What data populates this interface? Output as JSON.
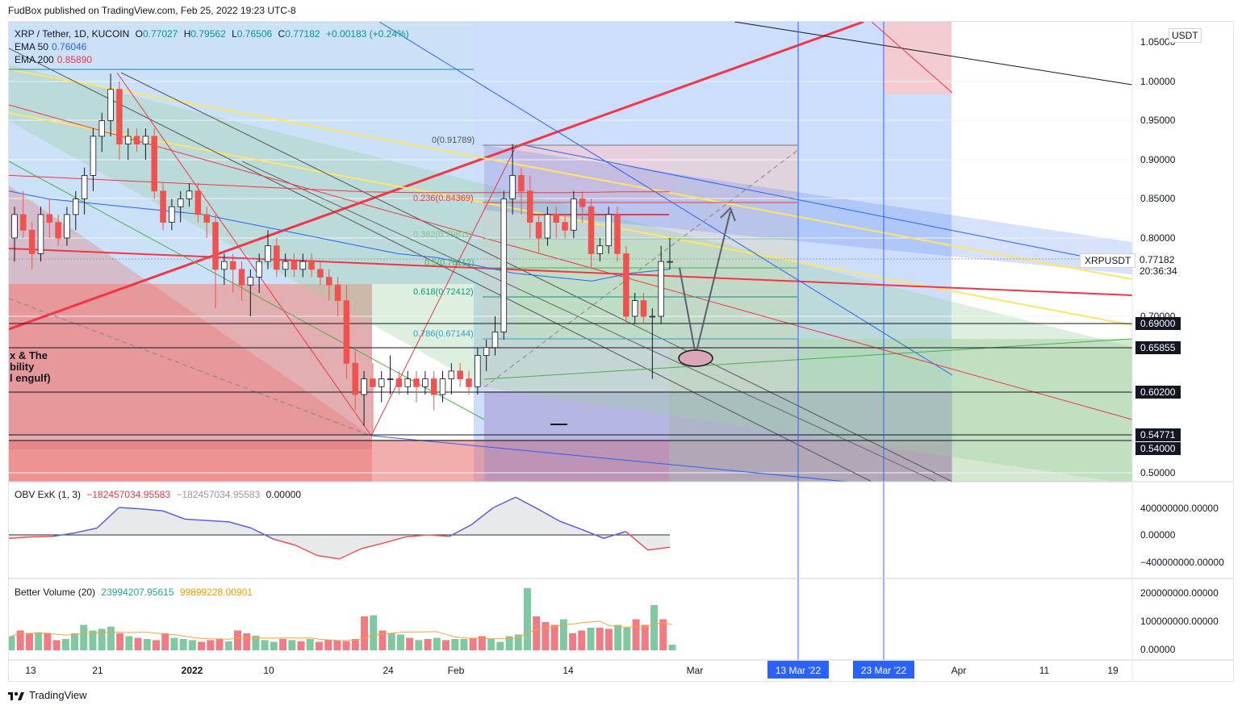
{
  "header": {
    "published": "FudBox published on TradingView.com, Feb 25, 2022 19:23 UTC-8"
  },
  "footer": {
    "brand": "TradingView"
  },
  "main_legend": {
    "symbol": "XRP / Tether, 1D, KUCOIN",
    "o_label": "O",
    "o": "0.77027",
    "h_label": "H",
    "h": "0.79562",
    "l_label": "L",
    "l": "0.76506",
    "c_label": "C",
    "c": "0.77182",
    "change": "+0.00183 (+0.24%)",
    "ema50_label": "EMA 50",
    "ema50": "0.76046",
    "ema200_label": "EMA 200",
    "ema200": "0.85890"
  },
  "annotation_text": [
    "x & The",
    "bility",
    "l engulf)"
  ],
  "currency": "USDT",
  "symbol_tag": "XRPUSDT",
  "price_axis": [
    "1.05000",
    "1.00000",
    "0.95000",
    "0.90000",
    "0.85000",
    "0.80000",
    "0.70000",
    "0.50000"
  ],
  "last_price": {
    "value": "0.77182",
    "countdown": "20:36:34"
  },
  "level_labels": [
    "0.69000",
    "0.65855",
    "0.60200",
    "0.54771",
    "0.54000"
  ],
  "fib_labels": [
    "0(0.91789)",
    "0.236(0.84369)",
    "0.382(0.79811)",
    "0.5(0.76112)",
    "0.618(0.72412)",
    "0.786(0.67144)"
  ],
  "obv": {
    "label": "OBV ExK (1, 3)",
    "v1": "−182457034.95583",
    "v2": "−182457034.95583",
    "v3": "0.00000",
    "axis": [
      "400000000.00000",
      "0.00000",
      "−400000000.00000"
    ]
  },
  "volume": {
    "label": "Better Volume (20)",
    "v1": "23994207.95615",
    "v2": "99899228.00901",
    "axis": [
      "200000000.00000",
      "100000000.00000",
      "0.00000"
    ]
  },
  "time_axis": [
    "13",
    "21",
    "2022",
    "10",
    "24",
    "Feb",
    "14",
    "Mar",
    "Apr",
    "11",
    "19"
  ],
  "date_markers": [
    "13 Mar '22",
    "23 Mar '22"
  ],
  "colors": {
    "up": "#ffffff",
    "down": "#ef5350",
    "up_border": "#26a69a",
    "ema50": "#2962ff",
    "ema200": "#f23645",
    "accent": "#2962ff"
  },
  "chart_data": {
    "type": "candlestick",
    "title": "XRP / Tether, 1D, KUCOIN",
    "ylim": [
      0.48,
      1.08
    ],
    "candles": [
      [
        0.8,
        0.84,
        0.77,
        0.83
      ],
      [
        0.83,
        0.86,
        0.8,
        0.81
      ],
      [
        0.81,
        0.82,
        0.76,
        0.78
      ],
      [
        0.78,
        0.84,
        0.77,
        0.83
      ],
      [
        0.83,
        0.85,
        0.8,
        0.82
      ],
      [
        0.82,
        0.83,
        0.79,
        0.8
      ],
      [
        0.8,
        0.84,
        0.79,
        0.83
      ],
      [
        0.83,
        0.86,
        0.81,
        0.85
      ],
      [
        0.85,
        0.89,
        0.83,
        0.88
      ],
      [
        0.88,
        0.94,
        0.86,
        0.93
      ],
      [
        0.93,
        0.96,
        0.91,
        0.95
      ],
      [
        0.95,
        1.01,
        0.93,
        0.99
      ],
      [
        0.99,
        1.0,
        0.9,
        0.92
      ],
      [
        0.92,
        0.94,
        0.9,
        0.93
      ],
      [
        0.93,
        0.94,
        0.91,
        0.92
      ],
      [
        0.92,
        0.94,
        0.9,
        0.93
      ],
      [
        0.93,
        0.94,
        0.85,
        0.86
      ],
      [
        0.86,
        0.87,
        0.81,
        0.82
      ],
      [
        0.82,
        0.85,
        0.81,
        0.84
      ],
      [
        0.84,
        0.86,
        0.82,
        0.85
      ],
      [
        0.85,
        0.87,
        0.84,
        0.86
      ],
      [
        0.86,
        0.87,
        0.82,
        0.83
      ],
      [
        0.83,
        0.84,
        0.8,
        0.82
      ],
      [
        0.82,
        0.83,
        0.71,
        0.76
      ],
      [
        0.76,
        0.78,
        0.74,
        0.77
      ],
      [
        0.77,
        0.78,
        0.73,
        0.76
      ],
      [
        0.76,
        0.77,
        0.72,
        0.74
      ],
      [
        0.74,
        0.76,
        0.7,
        0.75
      ],
      [
        0.75,
        0.78,
        0.73,
        0.77
      ],
      [
        0.77,
        0.81,
        0.76,
        0.79
      ],
      [
        0.79,
        0.8,
        0.75,
        0.76
      ],
      [
        0.76,
        0.78,
        0.75,
        0.77
      ],
      [
        0.77,
        0.78,
        0.75,
        0.76
      ],
      [
        0.76,
        0.78,
        0.75,
        0.77
      ],
      [
        0.77,
        0.78,
        0.75,
        0.76
      ],
      [
        0.76,
        0.77,
        0.74,
        0.75
      ],
      [
        0.75,
        0.76,
        0.72,
        0.74
      ],
      [
        0.74,
        0.75,
        0.7,
        0.72
      ],
      [
        0.72,
        0.74,
        0.62,
        0.64
      ],
      [
        0.64,
        0.66,
        0.58,
        0.6
      ],
      [
        0.6,
        0.63,
        0.56,
        0.62
      ],
      [
        0.62,
        0.64,
        0.55,
        0.61
      ],
      [
        0.61,
        0.63,
        0.59,
        0.62
      ],
      [
        0.62,
        0.65,
        0.6,
        0.62
      ],
      [
        0.62,
        0.63,
        0.6,
        0.61
      ],
      [
        0.61,
        0.63,
        0.6,
        0.62
      ],
      [
        0.62,
        0.63,
        0.59,
        0.61
      ],
      [
        0.61,
        0.63,
        0.6,
        0.62
      ],
      [
        0.62,
        0.63,
        0.58,
        0.6
      ],
      [
        0.6,
        0.63,
        0.59,
        0.62
      ],
      [
        0.62,
        0.64,
        0.6,
        0.63
      ],
      [
        0.63,
        0.64,
        0.61,
        0.62
      ],
      [
        0.62,
        0.63,
        0.6,
        0.61
      ],
      [
        0.61,
        0.66,
        0.6,
        0.65
      ],
      [
        0.65,
        0.67,
        0.63,
        0.66
      ],
      [
        0.66,
        0.7,
        0.65,
        0.68
      ],
      [
        0.68,
        0.86,
        0.67,
        0.85
      ],
      [
        0.85,
        0.92,
        0.83,
        0.88
      ],
      [
        0.88,
        0.89,
        0.83,
        0.86
      ],
      [
        0.86,
        0.88,
        0.8,
        0.82
      ],
      [
        0.82,
        0.83,
        0.78,
        0.8
      ],
      [
        0.8,
        0.84,
        0.79,
        0.83
      ],
      [
        0.83,
        0.84,
        0.8,
        0.82
      ],
      [
        0.82,
        0.83,
        0.8,
        0.81
      ],
      [
        0.81,
        0.86,
        0.8,
        0.85
      ],
      [
        0.85,
        0.86,
        0.82,
        0.84
      ],
      [
        0.84,
        0.85,
        0.76,
        0.78
      ],
      [
        0.78,
        0.8,
        0.77,
        0.79
      ],
      [
        0.79,
        0.84,
        0.78,
        0.83
      ],
      [
        0.83,
        0.84,
        0.77,
        0.78
      ],
      [
        0.78,
        0.79,
        0.69,
        0.7
      ],
      [
        0.7,
        0.73,
        0.69,
        0.72
      ],
      [
        0.72,
        0.73,
        0.69,
        0.7
      ],
      [
        0.7,
        0.71,
        0.62,
        0.7
      ],
      [
        0.7,
        0.79,
        0.69,
        0.77
      ],
      [
        0.77,
        0.8,
        0.76,
        0.77
      ]
    ],
    "ema50": [
      0.86,
      0.85,
      0.845,
      0.84,
      0.835,
      0.83,
      0.82,
      0.81,
      0.8,
      0.79,
      0.78,
      0.775,
      0.765,
      0.755,
      0.75,
      0.745,
      0.755,
      0.76
    ],
    "ema200": [
      0.88,
      0.877,
      0.874,
      0.871,
      0.868,
      0.865,
      0.862,
      0.859,
      0.858,
      0.858,
      0.858,
      0.858,
      0.859,
      0.859
    ],
    "obv": [
      -0.5,
      -0.3,
      -0.2,
      0.3,
      1.0,
      4.0,
      3.8,
      3.5,
      2.3,
      2.1,
      1.9,
      1.0,
      -0.6,
      -1.5,
      -3.0,
      -3.5,
      -2.0,
      -1.2,
      -0.3,
      0.0,
      -0.2,
      1.5,
      4.0,
      5.5,
      3.8,
      2.0,
      0.8,
      -0.5,
      0.5,
      -2.2,
      -1.8
    ],
    "volume": [
      0.25,
      0.35,
      0.3,
      0.32,
      0.3,
      0.18,
      0.2,
      0.3,
      0.45,
      0.35,
      0.38,
      0.42,
      0.3,
      0.25,
      0.22,
      0.2,
      0.18,
      0.3,
      0.22,
      0.2,
      0.18,
      0.15,
      0.18,
      0.2,
      0.16,
      0.35,
      0.3,
      0.26,
      0.18,
      0.15,
      0.2,
      0.18,
      0.16,
      0.2,
      0.15,
      0.18,
      0.17,
      0.16,
      0.2,
      0.6,
      0.62,
      0.35,
      0.3,
      0.28,
      0.22,
      0.18,
      0.2,
      0.22,
      0.18,
      0.2,
      0.2,
      0.22,
      0.25,
      0.2,
      0.15,
      0.25,
      0.28,
      1.1,
      0.6,
      0.5,
      0.45,
      0.55,
      0.3,
      0.35,
      0.4,
      0.4,
      0.38,
      0.45,
      0.4,
      0.55,
      0.45,
      0.8,
      0.55,
      0.1
    ]
  }
}
